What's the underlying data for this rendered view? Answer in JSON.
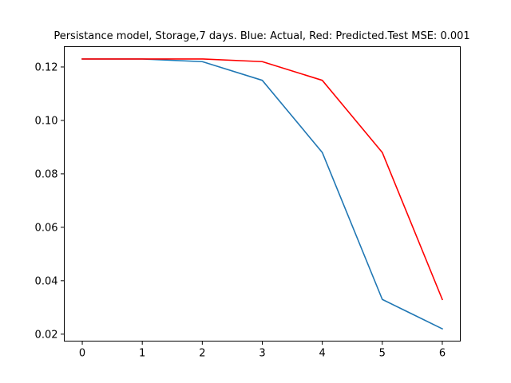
{
  "chart_data": {
    "type": "line",
    "title": "Persistance model, Storage,7 days. Blue: Actual, Red: Predicted.Test MSE: 0.001",
    "xlabel": "",
    "ylabel": "",
    "x": [
      0,
      1,
      2,
      3,
      4,
      5,
      6
    ],
    "xlim": [
      -0.3,
      6.3
    ],
    "ylim": [
      0.0174,
      0.1276
    ],
    "xticks": [
      0,
      1,
      2,
      3,
      4,
      5,
      6
    ],
    "xtick_labels": [
      "0",
      "1",
      "2",
      "3",
      "4",
      "5",
      "6"
    ],
    "yticks": [
      0.02,
      0.04,
      0.06,
      0.08,
      0.1,
      0.12
    ],
    "ytick_labels": [
      "0.02",
      "0.04",
      "0.06",
      "0.08",
      "0.10",
      "0.12"
    ],
    "grid": false,
    "legend": "none",
    "series": [
      {
        "color": "#1f77b4",
        "values": [
          0.123,
          0.123,
          0.122,
          0.115,
          0.088,
          0.033,
          0.022
        ]
      },
      {
        "color": "#ff0000",
        "values": [
          0.123,
          0.123,
          0.123,
          0.122,
          0.115,
          0.088,
          0.033
        ]
      }
    ]
  }
}
